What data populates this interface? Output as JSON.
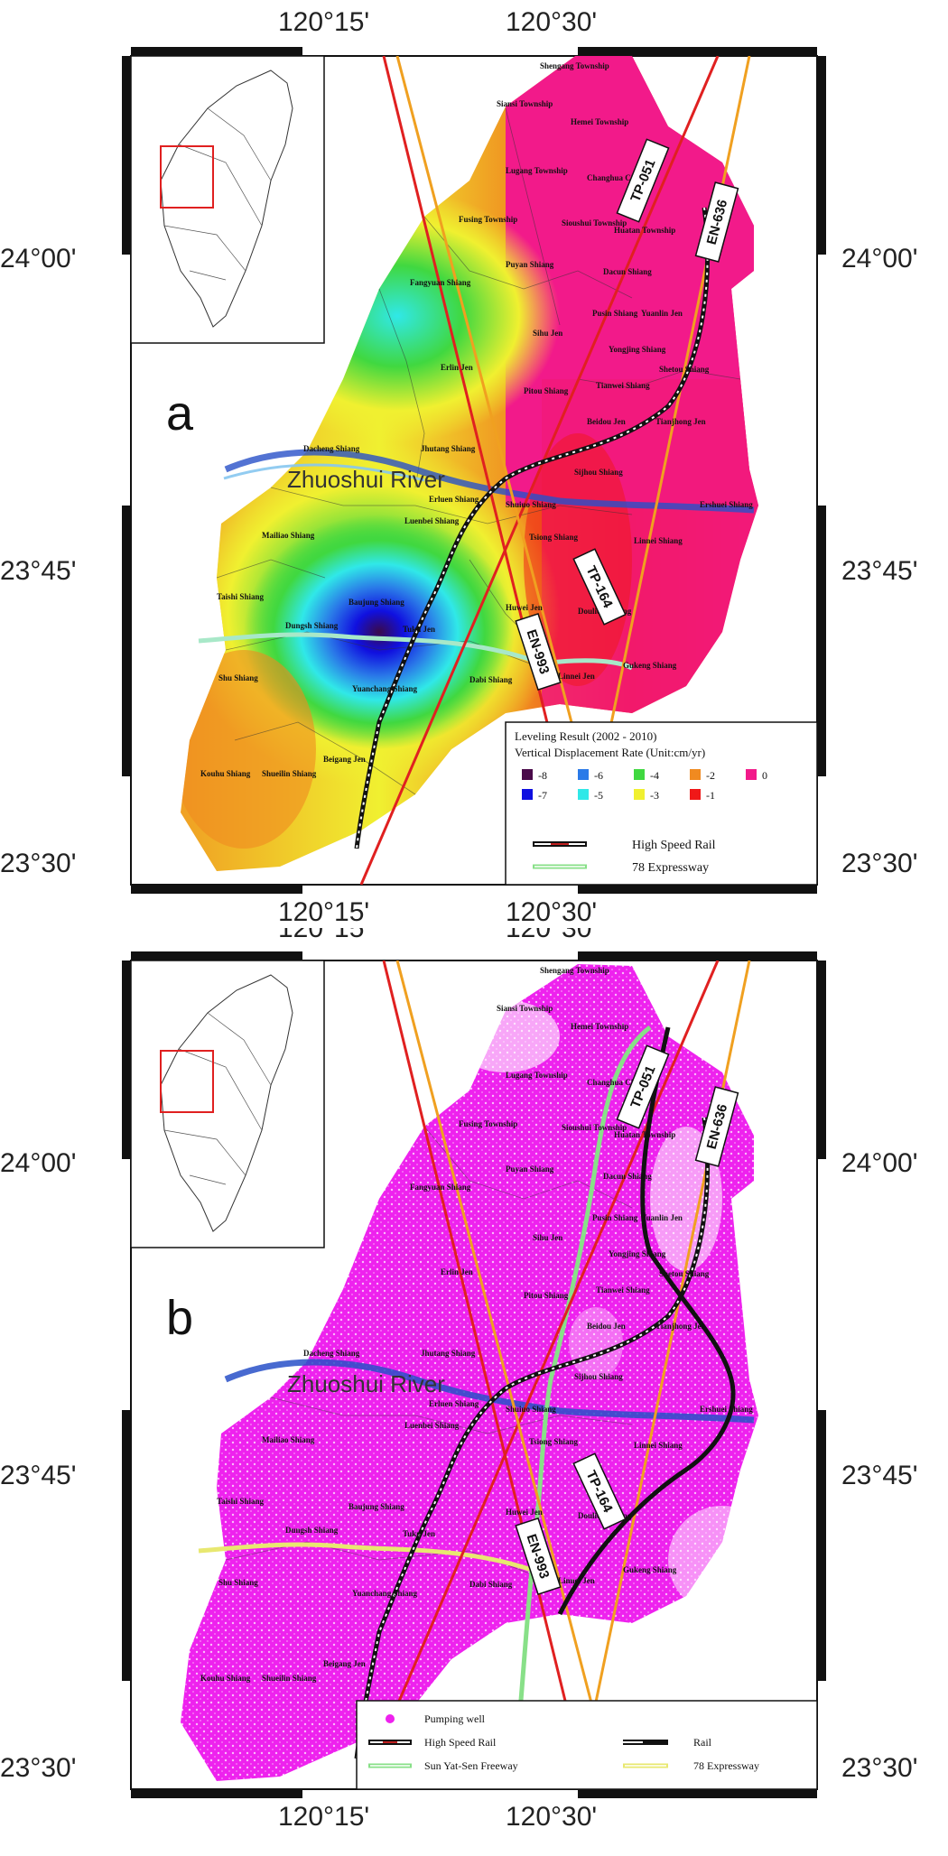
{
  "colors": {
    "rate_-8": "#4a0a4a",
    "rate_-7": "#1010e0",
    "rate_-6": "#2a7ae8",
    "rate_-5": "#30e8e8",
    "rate_-4": "#40d840",
    "rate_-3": "#f0f030",
    "rate_-2": "#f08a20",
    "rate_-1": "#f01818",
    "rate_0": "#f21a8a",
    "pumping_well": "#ee22ee",
    "high_speed_rail": "#111111",
    "expressway_78": "#e8e870",
    "sun_yat_sen_freeway": "#88e088",
    "rail": "#111111",
    "track_red": "#e02020",
    "track_orange": "#f0a020",
    "inset_box": "#e02020"
  },
  "axes": {
    "top_labels": [
      "120°15'",
      "120°30'"
    ],
    "left_labels": [
      "24°00'",
      "23°45'",
      "23°30'"
    ],
    "right_labels": [
      "24°00'",
      "23°45'",
      "23°30'"
    ],
    "bottom_labels": [
      "120°15'",
      "120°30'"
    ]
  },
  "river_label": "Zhuoshui River",
  "tracks": [
    "TP-051",
    "EN-636",
    "TP-164",
    "EN-993"
  ],
  "places": [
    "Shengang Township",
    "Siansi Township",
    "Hemei Township",
    "Lugang Township",
    "Changhua City",
    "Fusing Township",
    "Sioushui Township",
    "Huatan Township",
    "Fangyuan Shiang",
    "Puyan Shiang",
    "Dacun Shiang",
    "Pusin Shiang",
    "Yuanlin Jen",
    "Sihu Jen",
    "Yongjing Shiang",
    "Erlin Jen",
    "Shetou Shiang",
    "Pitou Shiang",
    "Tianwei Shiang",
    "Beidou Jen",
    "Tianjhong Jen",
    "Dacheng Shiang",
    "Jhutang Shiang",
    "Sijhou Shiang",
    "Erluen Shiang",
    "Shuiuo Shiang",
    "Ershuei Shiang",
    "Luenbei Shiang",
    "Mailiao Shiang",
    "Tsiong Shiang",
    "Linnei Shiang",
    "Baujung Shiang",
    "Taishi Shiang",
    "Dungsh Shiang",
    "Huwei Jen",
    "Douliou Shiang",
    "Tuku Jen",
    "Dabi Shiang",
    "Gukeng Shiang",
    "Shu Shiang",
    "Yuanchang Shiang",
    "Linnei Jen",
    "Beigang Jen",
    "Kouhu Shiang",
    "Shueilin Shiang"
  ],
  "panel_a": {
    "letter": "a",
    "legend": {
      "title": "Leveling Result (2002 - 2010)",
      "subtitle": "Vertical Displacement Rate (Unit:cm/yr)",
      "classes": [
        "-8",
        "-7",
        "-6",
        "-5",
        "-4",
        "-3",
        "-2",
        "-1",
        "0"
      ],
      "lines": [
        "High Speed Rail",
        "78 Expressway"
      ]
    }
  },
  "panel_b": {
    "letter": "b",
    "legend": {
      "items": [
        "Pumping well",
        "High Speed Rail",
        "Sun Yat-Sen Freeway",
        "Rail",
        "78 Expressway"
      ]
    }
  }
}
